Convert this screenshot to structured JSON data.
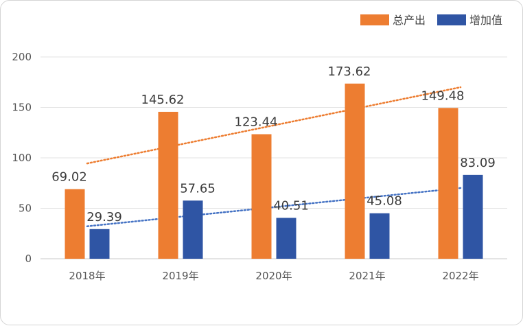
{
  "chart_data": {
    "type": "bar",
    "categories": [
      "2018年",
      "2019年",
      "2020年",
      "2021年",
      "2022年"
    ],
    "series": [
      {
        "name": "总产出",
        "color": "#ED7D31",
        "values": [
          69.02,
          145.62,
          123.44,
          173.62,
          149.48
        ],
        "labels": [
          "69.02",
          "145.62",
          "123.44",
          "173.62",
          "149.48"
        ]
      },
      {
        "name": "增加值",
        "color": "#2F55A4",
        "values": [
          29.39,
          57.65,
          40.51,
          45.08,
          83.09
        ],
        "labels": [
          "29.39",
          "57.65",
          "40.51",
          "45.08",
          "83.09"
        ]
      }
    ],
    "trendlines": [
      {
        "series": "总产出",
        "style": "dotted",
        "color": "#ED7D31"
      },
      {
        "series": "增加值",
        "style": "dotted",
        "color": "#4472C4"
      }
    ],
    "ylim": [
      0,
      200
    ],
    "yticks": [
      "0",
      "50",
      "100",
      "150",
      "200"
    ],
    "grid": true,
    "legend": "top-right"
  }
}
